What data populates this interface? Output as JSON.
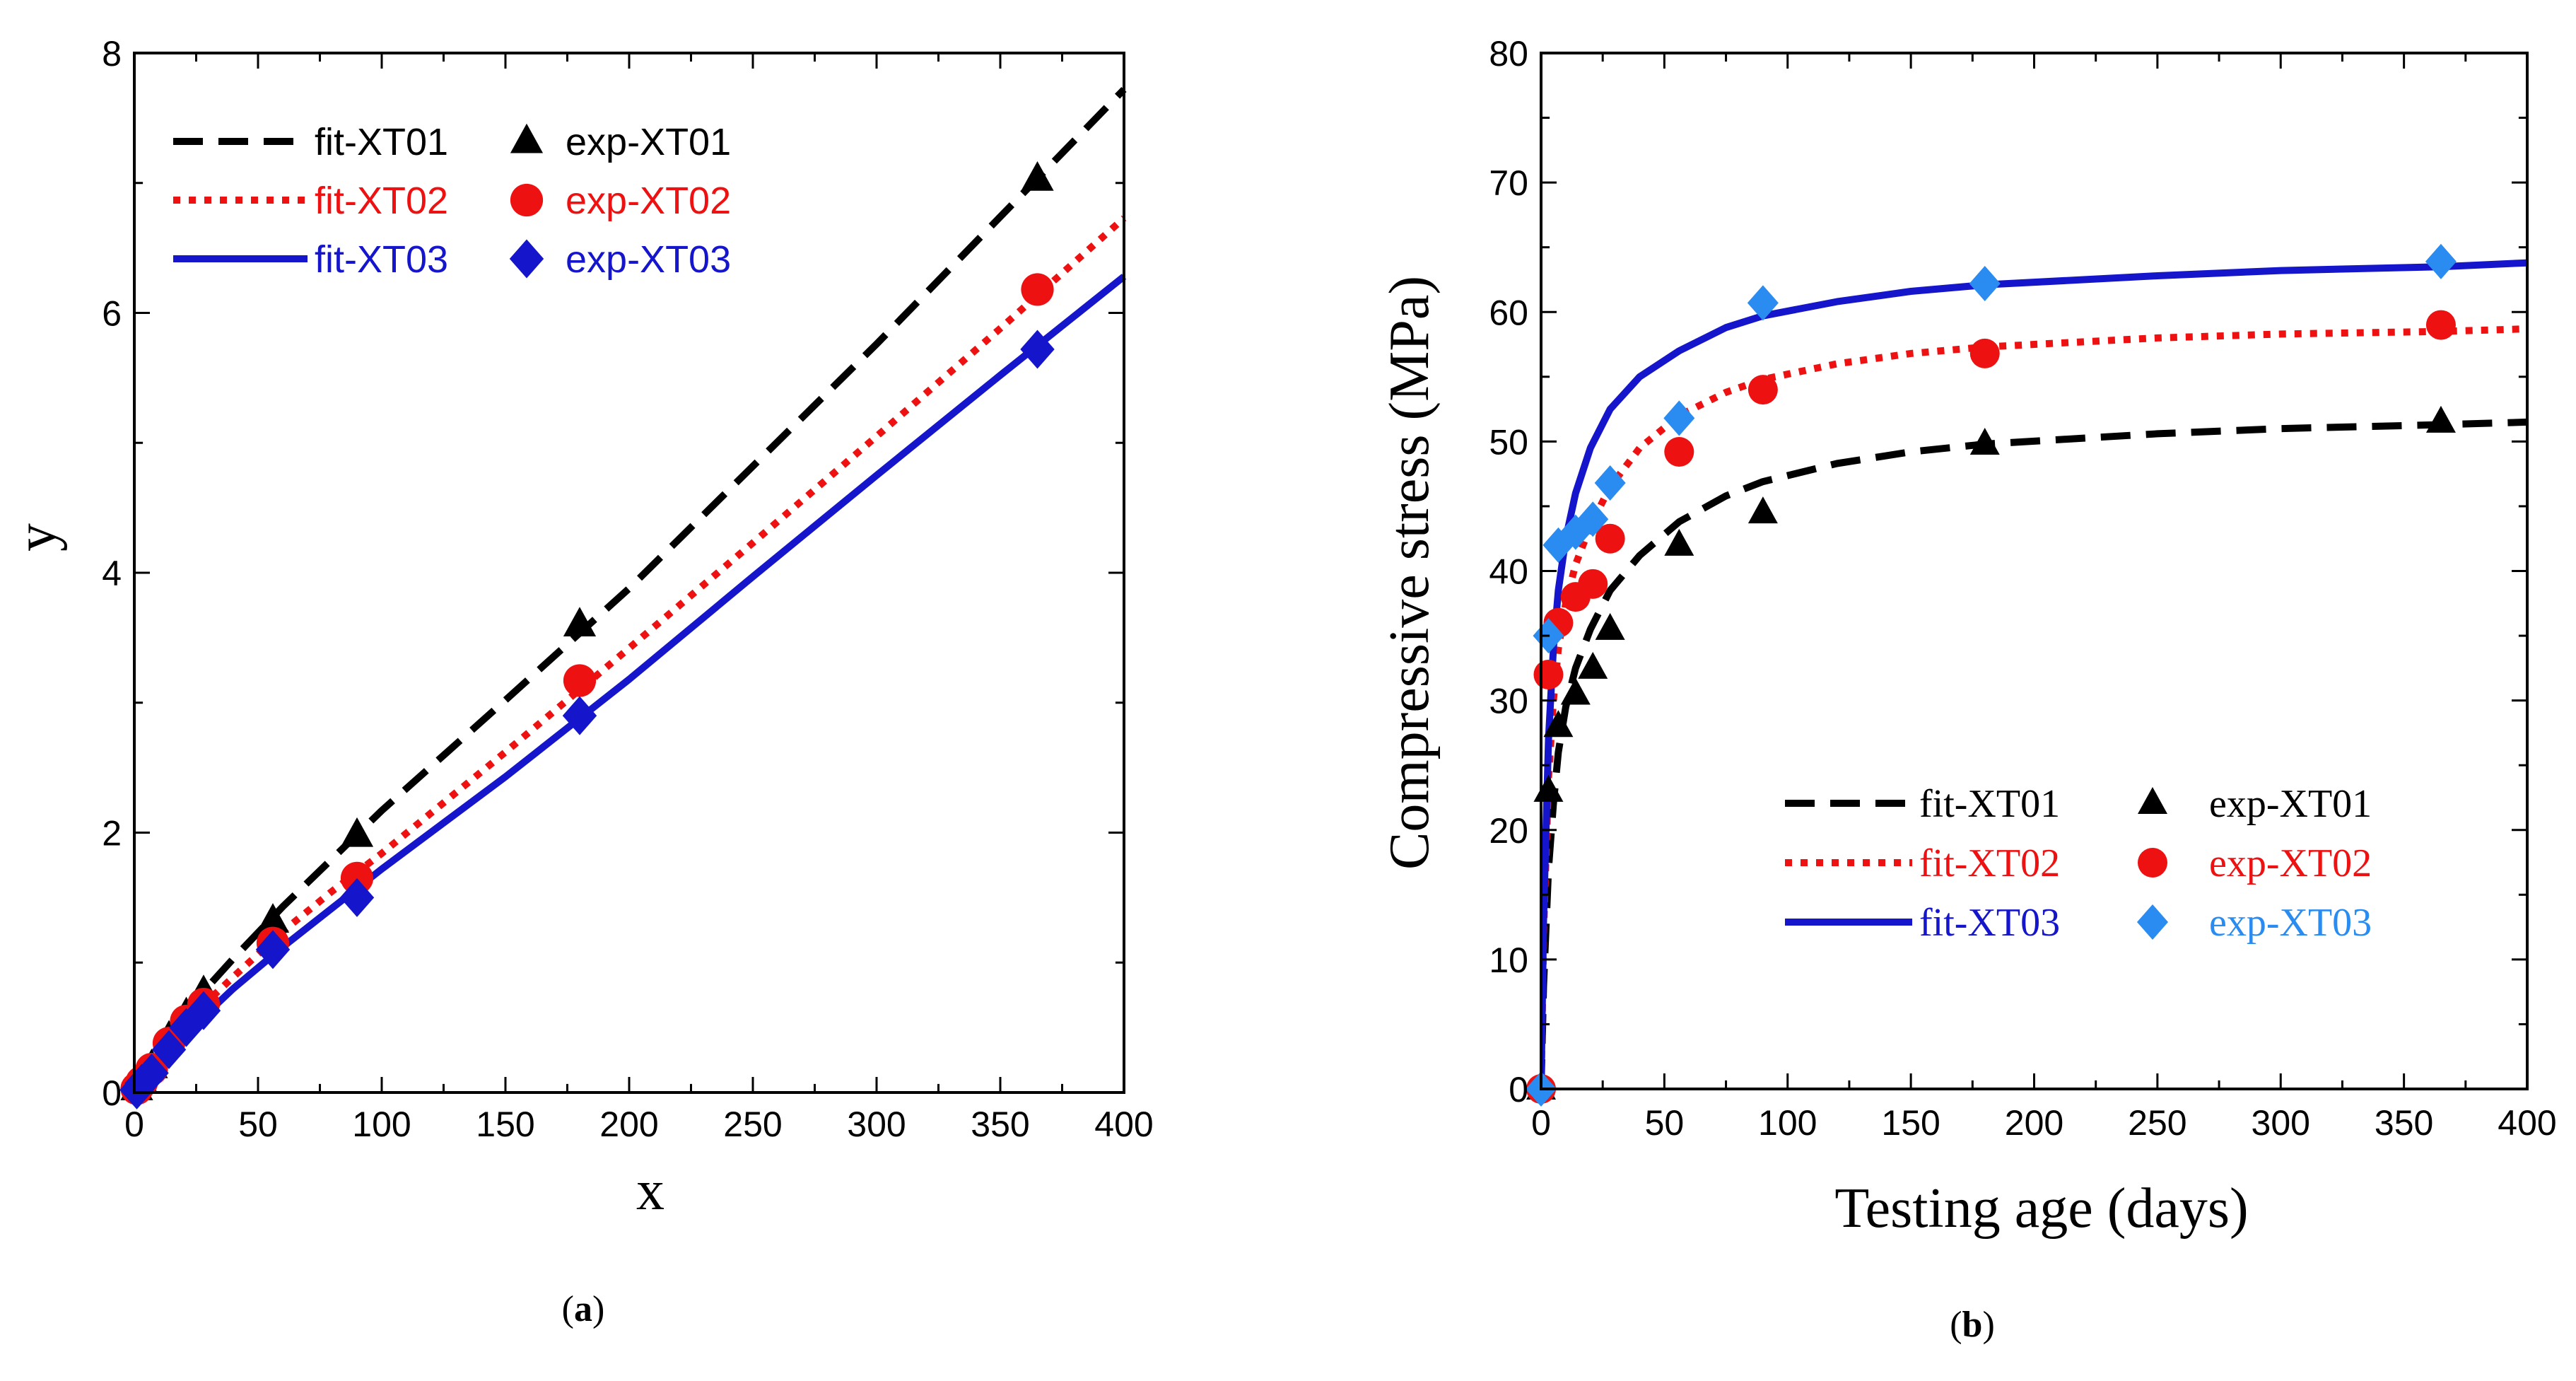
{
  "colors": {
    "xt01": "#000000",
    "xt02": "#ee1111",
    "xt03": "#1515cc",
    "xt03_points": "#2a8cf0"
  },
  "chart_data": [
    {
      "type": "line",
      "panel_label": "(a)",
      "panel_letter": "a",
      "title": "",
      "xlabel": "x",
      "ylabel": "y",
      "xlim": [
        0,
        400
      ],
      "ylim": [
        0,
        8
      ],
      "xticks": [
        0,
        50,
        100,
        150,
        200,
        250,
        300,
        350,
        400
      ],
      "yticks": [
        0,
        2,
        4,
        6,
        8
      ],
      "legend_position": "top-left",
      "series": [
        {
          "name": "fit-XT01",
          "kind": "fit",
          "style": "dashed",
          "color": "#000000",
          "x": [
            0,
            10,
            20,
            30,
            40,
            60,
            80,
            100,
            150,
            200,
            250,
            300,
            350,
            400
          ],
          "y": [
            0,
            0.35,
            0.6,
            0.82,
            1.03,
            1.43,
            1.8,
            2.17,
            3.02,
            3.88,
            4.82,
            5.76,
            6.74,
            7.72
          ]
        },
        {
          "name": "fit-XT02",
          "kind": "fit",
          "style": "dotted",
          "color": "#ee1111",
          "x": [
            0,
            10,
            20,
            30,
            40,
            60,
            80,
            100,
            150,
            200,
            250,
            300,
            350,
            400
          ],
          "y": [
            0,
            0.28,
            0.51,
            0.71,
            0.89,
            1.24,
            1.55,
            1.84,
            2.62,
            3.42,
            4.23,
            5.05,
            5.88,
            6.73
          ]
        },
        {
          "name": "fit-XT03",
          "kind": "fit",
          "style": "solid",
          "color": "#1515cc",
          "x": [
            0,
            10,
            20,
            30,
            40,
            60,
            80,
            100,
            150,
            200,
            250,
            300,
            350,
            400
          ],
          "y": [
            0,
            0.22,
            0.43,
            0.62,
            0.8,
            1.12,
            1.42,
            1.72,
            2.43,
            3.18,
            3.97,
            4.75,
            5.52,
            6.28
          ]
        },
        {
          "name": "exp-XT01",
          "kind": "exp",
          "marker": "triangle",
          "color": "#000000",
          "x": [
            1,
            3,
            7,
            14,
            21,
            28,
            56,
            90,
            180,
            365
          ],
          "y": [
            0.03,
            0.08,
            0.2,
            0.42,
            0.6,
            0.77,
            1.32,
            1.98,
            3.6,
            7.03
          ]
        },
        {
          "name": "exp-XT02",
          "kind": "exp",
          "marker": "circle",
          "color": "#ee1111",
          "x": [
            1,
            3,
            7,
            14,
            21,
            28,
            56,
            90,
            180,
            365
          ],
          "y": [
            0.03,
            0.08,
            0.18,
            0.38,
            0.55,
            0.68,
            1.15,
            1.65,
            3.17,
            6.18
          ]
        },
        {
          "name": "exp-XT03",
          "kind": "exp",
          "marker": "diamond",
          "color": "#1515cc",
          "x": [
            1,
            3,
            7,
            14,
            21,
            28,
            56,
            90,
            180,
            365
          ],
          "y": [
            0.02,
            0.07,
            0.15,
            0.33,
            0.5,
            0.63,
            1.1,
            1.5,
            2.9,
            5.72
          ]
        }
      ]
    },
    {
      "type": "line",
      "panel_label": "(b)",
      "panel_letter": "b",
      "title": "",
      "xlabel": "Testing age (days)",
      "ylabel": "Compressive stress (MPa)",
      "xlim": [
        0,
        400
      ],
      "ylim": [
        0,
        80
      ],
      "xticks": [
        0,
        50,
        100,
        150,
        200,
        250,
        300,
        350,
        400
      ],
      "yticks": [
        0,
        10,
        20,
        30,
        40,
        50,
        60,
        70,
        80
      ],
      "legend_position": "bottom-right",
      "series": [
        {
          "name": "fit-XT01",
          "kind": "fit",
          "style": "dashed",
          "color": "#000000",
          "x": [
            0,
            1,
            3,
            5,
            7,
            10,
            14,
            20,
            28,
            40,
            56,
            75,
            90,
            120,
            150,
            180,
            250,
            300,
            365,
            400
          ],
          "y": [
            0,
            8,
            17,
            22,
            26,
            29.5,
            32.5,
            35.5,
            38.5,
            41.2,
            43.8,
            45.8,
            46.9,
            48.3,
            49.2,
            49.8,
            50.6,
            51.0,
            51.3,
            51.5
          ]
        },
        {
          "name": "fit-XT02",
          "kind": "fit",
          "style": "dotted",
          "color": "#ee1111",
          "x": [
            0,
            1,
            3,
            5,
            7,
            10,
            14,
            20,
            28,
            40,
            56,
            75,
            90,
            120,
            150,
            180,
            250,
            300,
            365,
            400
          ],
          "y": [
            0,
            12,
            24,
            30,
            34,
            37.5,
            40.5,
            43.5,
            46.5,
            49.5,
            52,
            53.8,
            54.8,
            56,
            56.8,
            57.3,
            58,
            58.3,
            58.5,
            58.7
          ]
        },
        {
          "name": "fit-XT03",
          "kind": "fit",
          "style": "solid",
          "color": "#1515cc",
          "x": [
            0,
            1,
            3,
            5,
            7,
            10,
            14,
            20,
            28,
            40,
            56,
            75,
            90,
            120,
            150,
            180,
            250,
            300,
            365,
            400
          ],
          "y": [
            0,
            13,
            27,
            34,
            38.5,
            42.5,
            46,
            49.5,
            52.5,
            55,
            57,
            58.8,
            59.7,
            60.8,
            61.6,
            62.1,
            62.8,
            63.2,
            63.5,
            63.8
          ]
        },
        {
          "name": "exp-XT01",
          "kind": "exp",
          "marker": "triangle",
          "color": "#000000",
          "x": [
            0,
            3,
            7,
            14,
            21,
            28,
            56,
            90,
            180,
            365
          ],
          "y": [
            0,
            23,
            28,
            30.5,
            32.5,
            35.5,
            42,
            44.5,
            49.8,
            51.5
          ]
        },
        {
          "name": "exp-XT02",
          "kind": "exp",
          "marker": "circle",
          "color": "#ee1111",
          "x": [
            0,
            3,
            7,
            14,
            21,
            28,
            56,
            90,
            180,
            365
          ],
          "y": [
            0,
            32,
            36,
            38,
            39,
            42.5,
            49.2,
            54,
            56.8,
            59
          ]
        },
        {
          "name": "exp-XT03",
          "kind": "exp",
          "marker": "diamond",
          "color": "#2a8cf0",
          "x": [
            0,
            3,
            7,
            14,
            21,
            28,
            56,
            90,
            180,
            365
          ],
          "y": [
            0,
            35,
            42,
            43,
            44,
            46.8,
            51.8,
            60.7,
            62.2,
            63.9
          ]
        }
      ]
    }
  ]
}
